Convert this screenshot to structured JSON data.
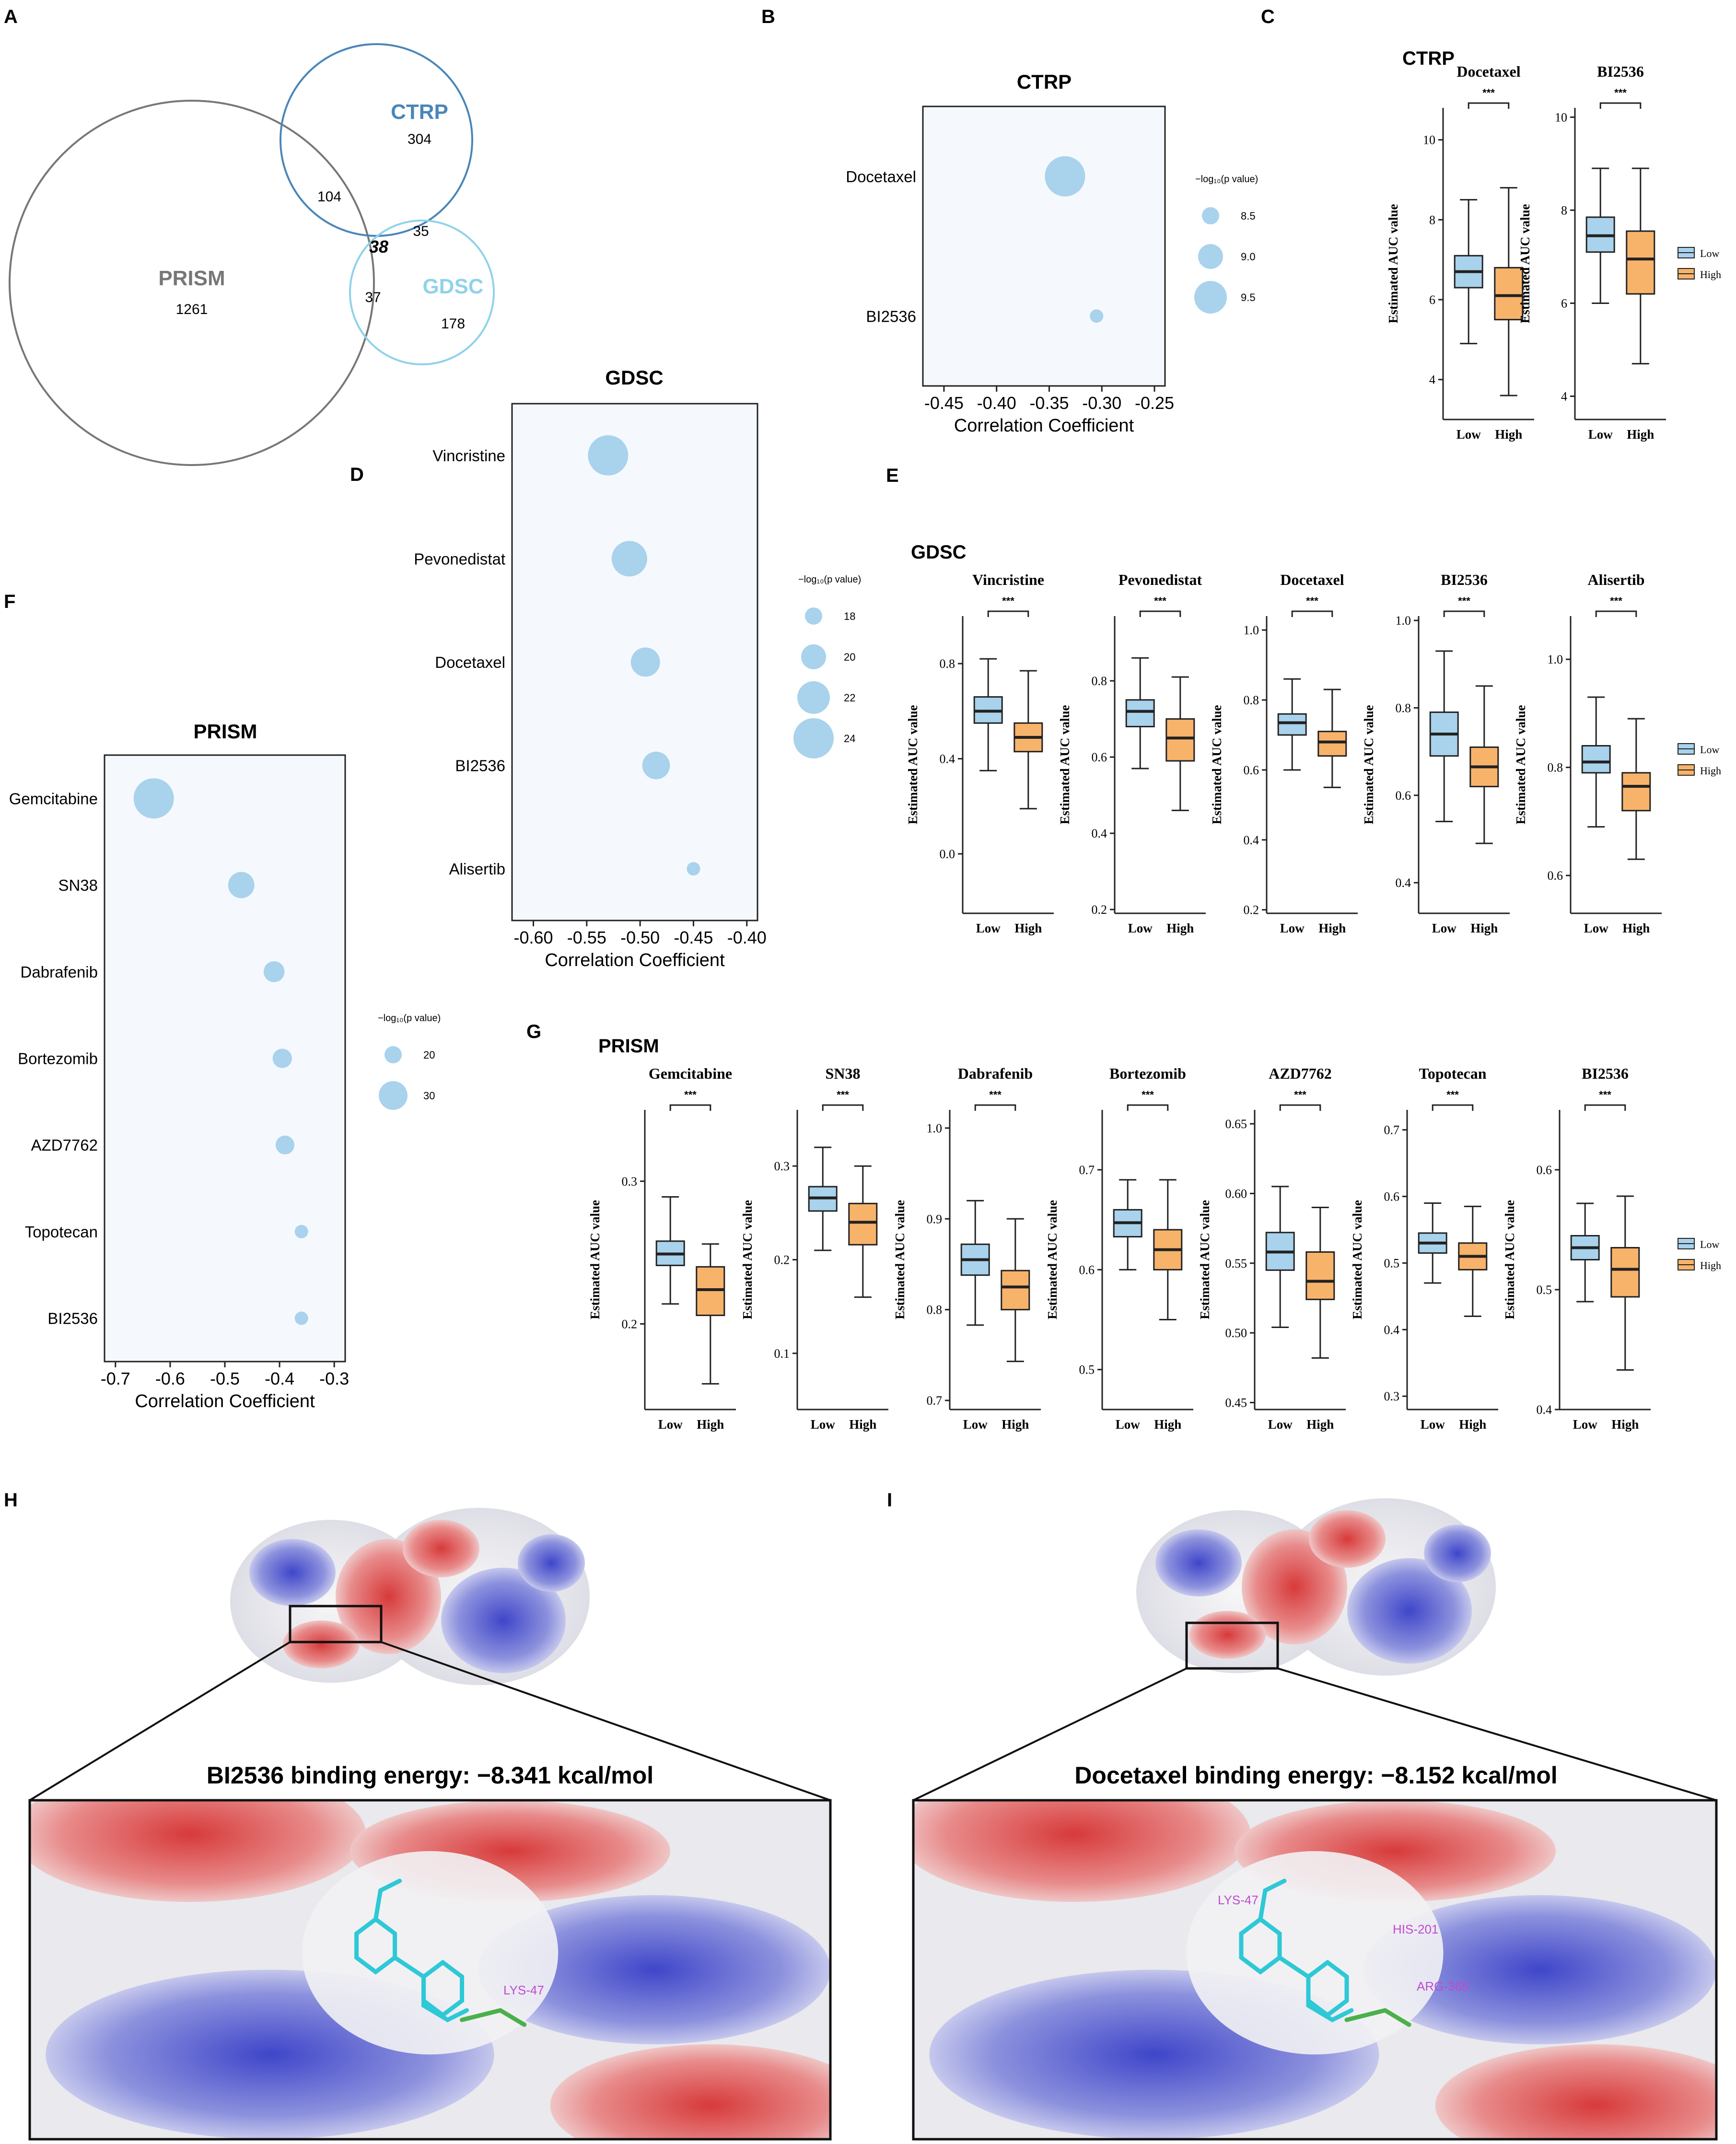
{
  "venn": {
    "panel_label": "A",
    "sets": [
      {
        "name": "PRISM",
        "count": "1261",
        "color": "#777777"
      },
      {
        "name": "CTRP",
        "count": "304",
        "color": "#4a86b8"
      },
      {
        "name": "GDSC",
        "count": "178",
        "color": "#8fd2ea"
      }
    ],
    "overlaps": {
      "prism_ctrp": "104",
      "ctrp_gdsc": "35",
      "prism_gdsc": "37",
      "all": "38"
    }
  },
  "bubble_panels": [
    {
      "id": "B",
      "panel_label": "B",
      "title": "CTRP",
      "legend_title": "−log₁₀(p value)",
      "legend_sizes": [
        "8.5",
        "9.0",
        "9.5"
      ],
      "xlabel": "Correlation Coefficient",
      "xticks": [
        "-0.45",
        "-0.40",
        "-0.35",
        "-0.30",
        "-0.25"
      ]
    },
    {
      "id": "D",
      "panel_label": "D",
      "title": "GDSC",
      "legend_title": "−log₁₀(p value)",
      "legend_sizes": [
        "18",
        "20",
        "22",
        "24"
      ],
      "xlabel": "Correlation Coefficient",
      "xticks": [
        "-0.60",
        "-0.55",
        "-0.50",
        "-0.45",
        "-0.40"
      ]
    },
    {
      "id": "F",
      "panel_label": "F",
      "title": "PRISM",
      "legend_title": "−log₁₀(p value)",
      "legend_sizes": [
        "20",
        "30"
      ],
      "xlabel": "Correlation Coefficient",
      "xticks": [
        "-0.7",
        "-0.6",
        "-0.5",
        "-0.4",
        "-0.3"
      ]
    }
  ],
  "box_groups": [
    {
      "id": "C",
      "panel_label": "C",
      "title": "CTRP",
      "ylabel": "Estimated AUC value",
      "legend": [
        {
          "label": "Low",
          "color": "#a9d2ec"
        },
        {
          "label": "High",
          "color": "#f8b36b"
        }
      ],
      "xcats": [
        "Low",
        "High"
      ],
      "sig": "***",
      "drugs": [
        {
          "name": "Docetaxel",
          "ticks": [
            "4",
            "6",
            "8",
            "10"
          ]
        },
        {
          "name": "BI2536",
          "ticks": [
            "4",
            "6",
            "8",
            "10"
          ]
        }
      ]
    },
    {
      "id": "E",
      "panel_label": "E",
      "title": "GDSC",
      "ylabel": "Estimated AUC value",
      "legend": [
        {
          "label": "Low",
          "color": "#a9d2ec"
        },
        {
          "label": "High",
          "color": "#f8b36b"
        }
      ],
      "xcats": [
        "Low",
        "High"
      ],
      "sig": "***",
      "drugs": [
        {
          "name": "Vincristine",
          "ticks": [
            "0.0",
            "0.4",
            "0.8"
          ]
        },
        {
          "name": "Pevonedistat",
          "ticks": [
            "0.2",
            "0.4",
            "0.6",
            "0.8"
          ]
        },
        {
          "name": "Docetaxel",
          "ticks": [
            "0.2",
            "0.4",
            "0.6",
            "0.8",
            "1.0"
          ]
        },
        {
          "name": "BI2536",
          "ticks": [
            "0.4",
            "0.6",
            "0.8",
            "1.0"
          ]
        },
        {
          "name": "Alisertib",
          "ticks": [
            "0.6",
            "0.8",
            "1.0"
          ]
        }
      ]
    },
    {
      "id": "G",
      "panel_label": "G",
      "title": "PRISM",
      "ylabel": "Estimated AUC value",
      "legend": [
        {
          "label": "Low",
          "color": "#a9d2ec"
        },
        {
          "label": "High",
          "color": "#f8b36b"
        }
      ],
      "xcats": [
        "Low",
        "High"
      ],
      "sig": "***",
      "drugs": [
        {
          "name": "Gemcitabine",
          "ticks": [
            "0.2",
            "0.3"
          ]
        },
        {
          "name": "SN38",
          "ticks": [
            "0.1",
            "0.2",
            "0.3"
          ]
        },
        {
          "name": "Dabrafenib",
          "ticks": [
            "0.7",
            "0.8",
            "0.9",
            "1.0"
          ]
        },
        {
          "name": "Bortezomib",
          "ticks": [
            "0.5",
            "0.6",
            "0.7"
          ]
        },
        {
          "name": "AZD7762",
          "ticks": [
            "0.45",
            "0.50",
            "0.55",
            "0.60",
            "0.65"
          ]
        },
        {
          "name": "Topotecan",
          "ticks": [
            "0.3",
            "0.4",
            "0.5",
            "0.6",
            "0.7"
          ]
        },
        {
          "name": "BI2536",
          "ticks": [
            "0.4",
            "0.5",
            "0.6"
          ]
        }
      ]
    }
  ],
  "docking": [
    {
      "panel_label": "H",
      "title": "BI2536 binding energy:  −8.341 kcal/mol",
      "residues": [
        "LYS-47"
      ]
    },
    {
      "panel_label": "I",
      "title": "Docetaxel binding energy:  −8.152 kcal/mol",
      "residues": [
        "LYS-47",
        "HIS-201",
        "ARG-365"
      ]
    }
  ],
  "chart_data": [
    {
      "panel": "B",
      "type": "scatter",
      "title": "CTRP",
      "xlabel": "Correlation Coefficient",
      "xlim": [
        -0.47,
        -0.24
      ],
      "categories": [
        "Docetaxel",
        "BI2536"
      ],
      "x": [
        -0.335,
        -0.305
      ],
      "size": [
        9.5,
        8.2
      ],
      "size_label": "−log₁₀(p value)",
      "color": "#a9d2ec"
    },
    {
      "panel": "D",
      "type": "scatter",
      "title": "GDSC",
      "xlabel": "Correlation Coefficient",
      "xlim": [
        -0.62,
        -0.39
      ],
      "categories": [
        "Vincristine",
        "Pevonedistat",
        "Docetaxel",
        "BI2536",
        "Alisertib"
      ],
      "x": [
        -0.53,
        -0.51,
        -0.495,
        -0.485,
        -0.45
      ],
      "size": [
        24.5,
        23,
        21,
        20.5,
        16
      ],
      "size_label": "−log₁₀(p value)",
      "color": "#a9d2ec"
    },
    {
      "panel": "F",
      "type": "scatter",
      "title": "PRISM",
      "xlabel": "Correlation Coefficient",
      "xlim": [
        -0.72,
        -0.28
      ],
      "categories": [
        "Gemcitabine",
        "SN38",
        "Dabrafenib",
        "Bortezomib",
        "AZD7762",
        "Topotecan",
        "BI2536"
      ],
      "x": [
        -0.63,
        -0.47,
        -0.41,
        -0.395,
        -0.39,
        -0.36,
        -0.36
      ],
      "size": [
        38,
        25,
        20,
        18.5,
        18,
        13,
        13
      ],
      "size_label": "−log₁₀(p value)",
      "color": "#a9d2ec"
    },
    {
      "panel": "C",
      "type": "box",
      "title": "CTRP",
      "ylabel": "Estimated AUC value",
      "groups": [
        "Low",
        "High"
      ],
      "panels": [
        {
          "drug": "Docetaxel",
          "ylim": [
            3,
            10.8
          ],
          "low": {
            "min": 4.9,
            "q1": 6.3,
            "median": 6.7,
            "q3": 7.1,
            "max": 8.5
          },
          "high": {
            "min": 3.6,
            "q1": 5.5,
            "median": 6.1,
            "q3": 6.8,
            "max": 8.8
          }
        },
        {
          "drug": "BI2536",
          "ylim": [
            3.5,
            10.2
          ],
          "low": {
            "min": 6.0,
            "q1": 7.1,
            "median": 7.45,
            "q3": 7.85,
            "max": 8.9
          },
          "high": {
            "min": 4.7,
            "q1": 6.2,
            "median": 6.95,
            "q3": 7.55,
            "max": 8.9
          }
        }
      ]
    },
    {
      "panel": "E",
      "type": "box",
      "title": "GDSC",
      "ylabel": "Estimated AUC value",
      "groups": [
        "Low",
        "High"
      ],
      "panels": [
        {
          "drug": "Vincristine",
          "ylim": [
            -0.25,
            1.0
          ],
          "low": {
            "min": 0.35,
            "q1": 0.55,
            "median": 0.6,
            "q3": 0.66,
            "max": 0.82
          },
          "high": {
            "min": 0.19,
            "q1": 0.43,
            "median": 0.49,
            "q3": 0.55,
            "max": 0.77
          }
        },
        {
          "drug": "Pevonedistat",
          "ylim": [
            0.19,
            0.97
          ],
          "low": {
            "min": 0.57,
            "q1": 0.68,
            "median": 0.72,
            "q3": 0.75,
            "max": 0.86
          },
          "high": {
            "min": 0.46,
            "q1": 0.59,
            "median": 0.65,
            "q3": 0.7,
            "max": 0.81
          }
        },
        {
          "drug": "Docetaxel",
          "ylim": [
            0.19,
            1.04
          ],
          "low": {
            "min": 0.6,
            "q1": 0.7,
            "median": 0.735,
            "q3": 0.76,
            "max": 0.86
          },
          "high": {
            "min": 0.55,
            "q1": 0.64,
            "median": 0.68,
            "q3": 0.71,
            "max": 0.83
          }
        },
        {
          "drug": "BI2536",
          "ylim": [
            0.33,
            1.01
          ],
          "low": {
            "min": 0.54,
            "q1": 0.69,
            "median": 0.74,
            "q3": 0.79,
            "max": 0.93
          },
          "high": {
            "min": 0.49,
            "q1": 0.62,
            "median": 0.665,
            "q3": 0.71,
            "max": 0.85
          }
        },
        {
          "drug": "Alisertib",
          "ylim": [
            0.53,
            1.08
          ],
          "low": {
            "min": 0.69,
            "q1": 0.79,
            "median": 0.81,
            "q3": 0.84,
            "max": 0.93
          },
          "high": {
            "min": 0.63,
            "q1": 0.72,
            "median": 0.765,
            "q3": 0.79,
            "max": 0.89
          }
        }
      ]
    },
    {
      "panel": "G",
      "type": "box",
      "title": "PRISM",
      "ylabel": "Estimated AUC value",
      "groups": [
        "Low",
        "High"
      ],
      "panels": [
        {
          "drug": "Gemcitabine",
          "ylim": [
            0.14,
            0.35
          ],
          "low": {
            "min": 0.214,
            "q1": 0.241,
            "median": 0.249,
            "q3": 0.258,
            "max": 0.289
          },
          "high": {
            "min": 0.158,
            "q1": 0.206,
            "median": 0.224,
            "q3": 0.24,
            "max": 0.256
          }
        },
        {
          "drug": "SN38",
          "ylim": [
            0.04,
            0.36
          ],
          "low": {
            "min": 0.21,
            "q1": 0.252,
            "median": 0.266,
            "q3": 0.278,
            "max": 0.32
          },
          "high": {
            "min": 0.16,
            "q1": 0.216,
            "median": 0.24,
            "q3": 0.26,
            "max": 0.3
          }
        },
        {
          "drug": "Dabrafenib",
          "ylim": [
            0.69,
            1.02
          ],
          "low": {
            "min": 0.783,
            "q1": 0.838,
            "median": 0.855,
            "q3": 0.872,
            "max": 0.92
          },
          "high": {
            "min": 0.743,
            "q1": 0.8,
            "median": 0.825,
            "q3": 0.843,
            "max": 0.9
          }
        },
        {
          "drug": "Bortezomib",
          "ylim": [
            0.46,
            0.76
          ],
          "low": {
            "min": 0.6,
            "q1": 0.633,
            "median": 0.647,
            "q3": 0.66,
            "max": 0.69
          },
          "high": {
            "min": 0.55,
            "q1": 0.6,
            "median": 0.62,
            "q3": 0.64,
            "max": 0.69
          }
        },
        {
          "drug": "AZD7762",
          "ylim": [
            0.445,
            0.66
          ],
          "low": {
            "min": 0.504,
            "q1": 0.545,
            "median": 0.558,
            "q3": 0.572,
            "max": 0.605
          },
          "high": {
            "min": 0.482,
            "q1": 0.524,
            "median": 0.537,
            "q3": 0.558,
            "max": 0.59
          }
        },
        {
          "drug": "Topotecan",
          "ylim": [
            0.28,
            0.73
          ],
          "low": {
            "min": 0.47,
            "q1": 0.515,
            "median": 0.53,
            "q3": 0.545,
            "max": 0.59
          },
          "high": {
            "min": 0.42,
            "q1": 0.49,
            "median": 0.51,
            "q3": 0.53,
            "max": 0.585
          }
        },
        {
          "drug": "BI2536",
          "ylim": [
            0.4,
            0.65
          ],
          "low": {
            "min": 0.49,
            "q1": 0.525,
            "median": 0.535,
            "q3": 0.545,
            "max": 0.572
          },
          "high": {
            "min": 0.433,
            "q1": 0.494,
            "median": 0.517,
            "q3": 0.535,
            "max": 0.578
          }
        }
      ]
    }
  ]
}
